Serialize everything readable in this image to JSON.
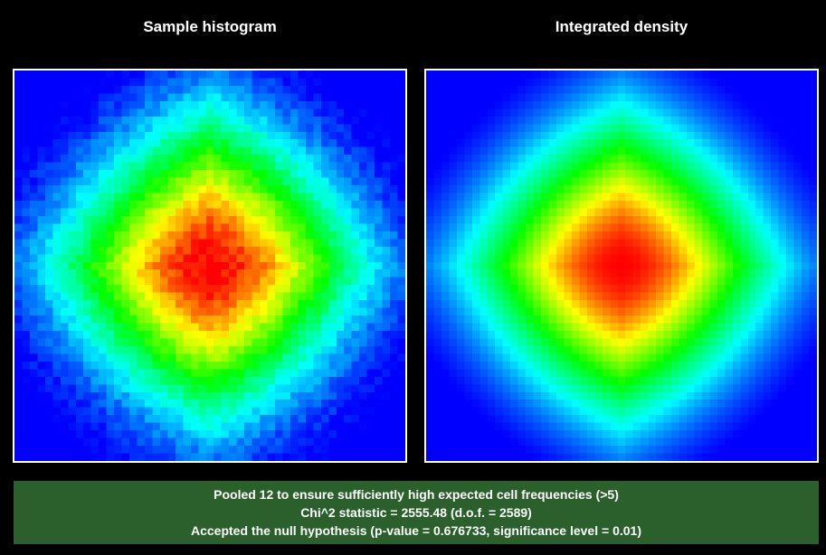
{
  "panels": {
    "left": {
      "title": "Sample histogram"
    },
    "right": {
      "title": "Integrated density"
    }
  },
  "status": {
    "lines": [
      "Pooled 12 to ensure sufficiently high expected cell frequencies (>5)",
      "Chi^2 statistic = 2555.48 (d.o.f. = 2589)",
      "Accepted the null hypothesis (p-value = 0.676733, significance level = 0.01)"
    ],
    "background": "#2b5f2c"
  },
  "chart_data": [
    {
      "type": "heatmap",
      "title": "Sample histogram",
      "colormap": [
        "#0000ff",
        "#00ffff",
        "#00ff00",
        "#ffff00",
        "#ff0000"
      ],
      "grid_resolution": [
        51,
        51
      ],
      "peak": "center",
      "contour_shape": "rounded diamond",
      "noisy": true
    },
    {
      "type": "heatmap",
      "title": "Integrated density",
      "colormap": [
        "#0000ff",
        "#00ffff",
        "#00ff00",
        "#ffff00",
        "#ff0000"
      ],
      "grid_resolution": [
        51,
        51
      ],
      "peak": "center",
      "contour_shape": "rounded diamond",
      "noisy": false
    }
  ]
}
